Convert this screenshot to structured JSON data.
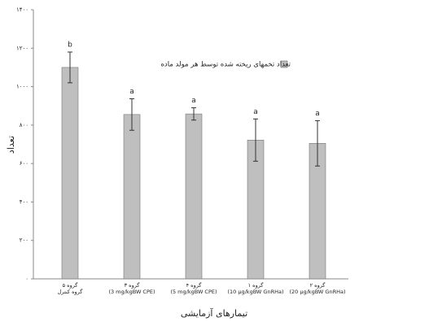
{
  "chart_data": {
    "type": "bar",
    "categories": [
      [
        "گروه ۵",
        "گروه کنترل"
      ],
      [
        "گروه ۳",
        "(3 mg/kgBW CPE)"
      ],
      [
        "گروه ۴",
        "(5 mg/kgBW CPE)"
      ],
      [
        "گروه ۱",
        "(10 µg/kgBW GnRHa)"
      ],
      [
        "گروه ۲",
        "(20 µg/kgBW GnRHa)"
      ]
    ],
    "series": [
      {
        "name": "تعداد تخمهای ریخته شده توسط هر مولد ماده",
        "color": "#bfbfbf",
        "values": [
          1100,
          855,
          858,
          722,
          705
        ],
        "errors": [
          80,
          82,
          32,
          110,
          118
        ]
      }
    ],
    "annotations": [
      "b",
      "a",
      "a",
      "a",
      "a"
    ],
    "ylabel": "تعداد",
    "xlabel": "تیمارهای آزمایشی",
    "ylim": [
      0,
      1400
    ],
    "yticks": [
      {
        "value": 0,
        "label": "۰"
      },
      {
        "value": 200,
        "label": "۲۰۰"
      },
      {
        "value": 400,
        "label": "۴۰۰"
      },
      {
        "value": 600,
        "label": "۶۰۰"
      },
      {
        "value": 800,
        "label": "۸۰۰"
      },
      {
        "value": 1000,
        "label": "۱۰۰۰"
      },
      {
        "value": 1200,
        "label": "۱۲۰۰"
      },
      {
        "value": 1400,
        "label": "۱۴۰۰"
      }
    ],
    "legend": "right"
  }
}
